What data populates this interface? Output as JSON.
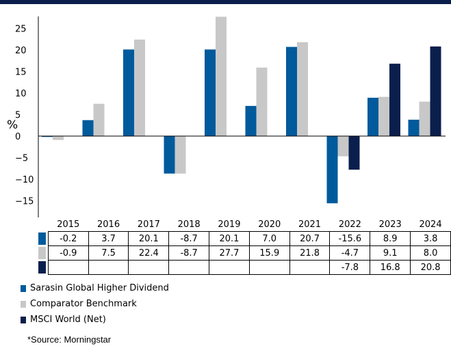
{
  "chart_data": {
    "type": "bar",
    "categories": [
      "2015",
      "2016",
      "2017",
      "2018",
      "2019",
      "2020",
      "2021",
      "2022",
      "2023",
      "2024"
    ],
    "series": [
      {
        "name": "Sarasin Global Higher Dividend",
        "color": "#005a9c",
        "values": [
          -0.2,
          3.7,
          20.1,
          -8.7,
          20.1,
          7.0,
          20.7,
          -15.6,
          8.9,
          3.8
        ],
        "labels": [
          "-0.2",
          "3.7",
          "20.1",
          "-8.7",
          "20.1",
          "7.0",
          "20.7",
          "-15.6",
          "8.9",
          "3.8"
        ]
      },
      {
        "name": "Comparator Benchmark",
        "color": "#c8c8c8",
        "values": [
          -0.9,
          7.5,
          22.4,
          -8.7,
          27.7,
          15.9,
          21.8,
          -4.7,
          9.1,
          8.0
        ],
        "labels": [
          "-0.9",
          "7.5",
          "22.4",
          "-8.7",
          "27.7",
          "15.9",
          "21.8",
          "-4.7",
          "9.1",
          "8.0"
        ]
      },
      {
        "name": "MSCI World (Net)",
        "color": "#0b1f4d",
        "values": [
          null,
          null,
          null,
          null,
          null,
          null,
          null,
          -7.8,
          16.8,
          20.8
        ],
        "labels": [
          "",
          "",
          "",
          "",
          "",
          "",
          "",
          "-7.8",
          "16.8",
          "20.8"
        ]
      }
    ],
    "ylabel": "%",
    "yticks": [
      "25",
      "20",
      "15",
      "10",
      "5",
      "0",
      "−5",
      "−10",
      "−15"
    ],
    "ytick_values": [
      25,
      20,
      15,
      10,
      5,
      0,
      -5,
      -10,
      -15
    ],
    "ylim": [
      -17,
      28
    ],
    "grid": false,
    "legend": "bottom-left"
  },
  "source": "*Source: Morningstar"
}
